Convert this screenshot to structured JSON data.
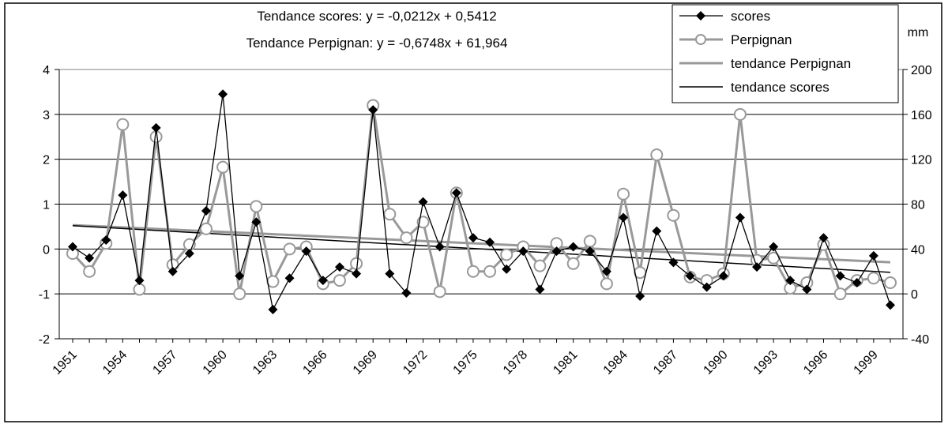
{
  "chart_data": {
    "type": "line",
    "title_lines": [
      "Tendance scores: y = -0,0212x + 0,5412",
      "Tendance Perpignan: y = -0,6748x + 61,964"
    ],
    "y2_unit": "mm",
    "ylim": [
      -2,
      4
    ],
    "yticks": [
      -2,
      -1,
      0,
      1,
      2,
      3,
      4
    ],
    "ylim_right": [
      -40,
      200
    ],
    "yticks_right": [
      -40,
      0,
      40,
      80,
      120,
      160,
      200
    ],
    "grid": true,
    "legend_position": "top-right",
    "x": [
      1951,
      1952,
      1953,
      1954,
      1955,
      1956,
      1957,
      1958,
      1959,
      1960,
      1961,
      1962,
      1963,
      1964,
      1965,
      1966,
      1967,
      1968,
      1969,
      1970,
      1971,
      1972,
      1973,
      1974,
      1975,
      1976,
      1977,
      1978,
      1979,
      1980,
      1981,
      1982,
      1983,
      1984,
      1985,
      1986,
      1987,
      1988,
      1989,
      1990,
      1991,
      1992,
      1993,
      1994,
      1995,
      1996,
      1997,
      1998,
      1999,
      2000
    ],
    "xtick_labels": [
      "1951",
      "1954",
      "1957",
      "1960",
      "1963",
      "1966",
      "1969",
      "1972",
      "1975",
      "1978",
      "1981",
      "1984",
      "1987",
      "1990",
      "1993",
      "1996",
      "1999"
    ],
    "series": [
      {
        "name": "scores",
        "axis": "left",
        "color": "#000000",
        "marker": "diamond",
        "values": [
          0.05,
          -0.2,
          0.2,
          1.2,
          -0.7,
          2.7,
          -0.5,
          -0.1,
          0.85,
          3.45,
          -0.6,
          0.6,
          -1.35,
          -0.65,
          -0.05,
          -0.7,
          -0.4,
          -0.55,
          3.1,
          -0.55,
          -0.98,
          1.05,
          0.05,
          1.25,
          0.25,
          0.15,
          -0.45,
          -0.05,
          -0.9,
          -0.05,
          0.05,
          -0.05,
          -0.5,
          0.7,
          -1.05,
          0.4,
          -0.3,
          -0.6,
          -0.85,
          -0.6,
          0.7,
          -0.4,
          0.05,
          -0.7,
          -0.9,
          0.25,
          -0.6,
          -0.75,
          -0.15,
          -1.25
        ]
      },
      {
        "name": "Perpignan",
        "axis": "right",
        "color": "#999999",
        "marker": "circle",
        "values": [
          36,
          20,
          45,
          151,
          4,
          140,
          26,
          44,
          58,
          113,
          0,
          78,
          11,
          40,
          42,
          9,
          12,
          27,
          168,
          71,
          50,
          64,
          2,
          90,
          20,
          20,
          35,
          42,
          25,
          45,
          27,
          47,
          9,
          89,
          19,
          124,
          70,
          15,
          12,
          18,
          160,
          30,
          32,
          5,
          10,
          44,
          0,
          12,
          14,
          10
        ]
      },
      {
        "name": "tendance Perpignan",
        "axis": "right",
        "color": "#999999",
        "trend": {
          "slope": -0.6748,
          "intercept": 61.964
        }
      },
      {
        "name": "tendance scores",
        "axis": "left",
        "color": "#000000",
        "trend": {
          "slope": -0.0212,
          "intercept": 0.5412
        }
      }
    ]
  }
}
